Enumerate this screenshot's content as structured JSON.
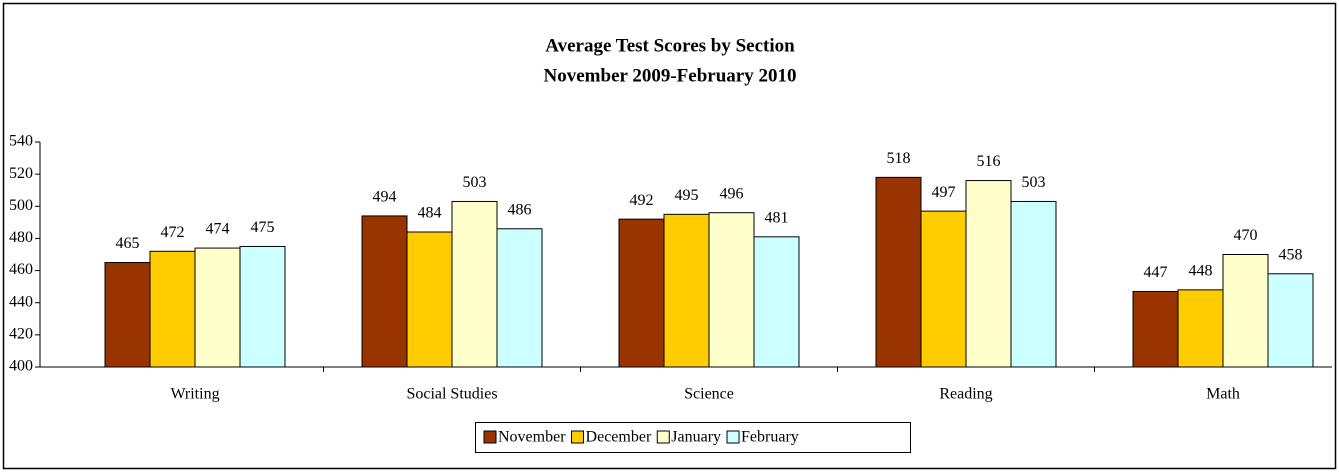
{
  "chart_data": {
    "type": "bar",
    "title": "Average Test Scores by Section",
    "subtitle": "November 2009-February 2010",
    "categories": [
      "Writing",
      "Social Studies",
      "Science",
      "Reading",
      "Math"
    ],
    "series": [
      {
        "name": "November",
        "color": "#993300",
        "values": [
          465,
          494,
          492,
          518,
          447
        ]
      },
      {
        "name": "December",
        "color": "#ffcc00",
        "values": [
          472,
          484,
          495,
          497,
          448
        ]
      },
      {
        "name": "January",
        "color": "#ffffcc",
        "values": [
          474,
          503,
          496,
          516,
          470
        ]
      },
      {
        "name": "February",
        "color": "#ccffff",
        "values": [
          475,
          486,
          481,
          503,
          458
        ]
      }
    ],
    "ylim": [
      400,
      540
    ],
    "yticks": [
      400,
      420,
      440,
      460,
      480,
      500,
      520,
      540
    ],
    "grid": false,
    "legend": "bottom"
  }
}
